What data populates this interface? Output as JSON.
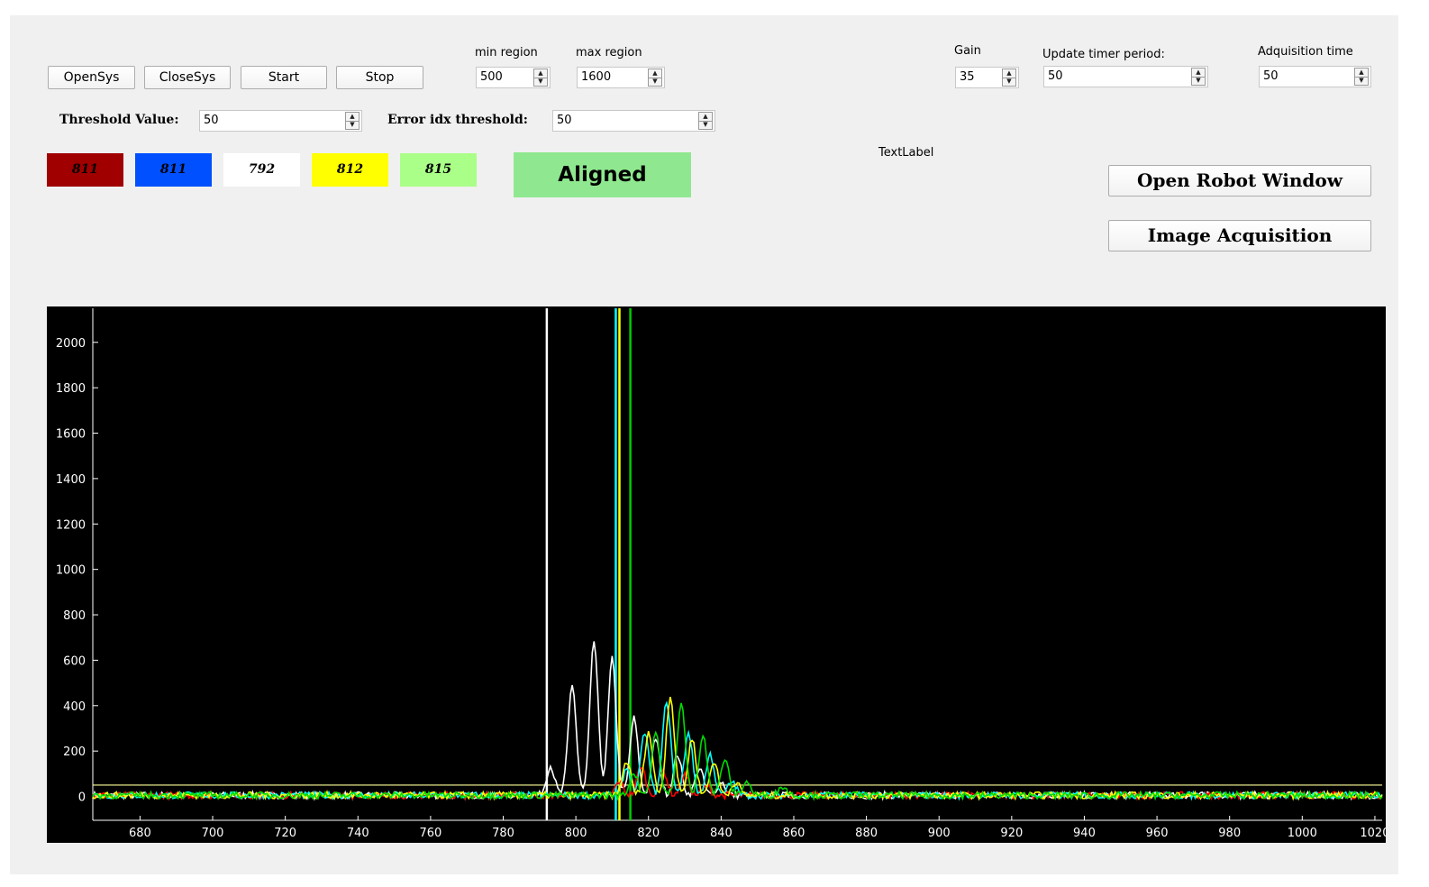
{
  "toolbar": {
    "opensys_label": "OpenSys",
    "closesys_label": "CloseSys",
    "start_label": "Start",
    "stop_label": "Stop"
  },
  "region": {
    "min_label": "min region",
    "min_value": "500",
    "max_label": "max region",
    "max_value": "1600"
  },
  "camera": {
    "gain_label": "Gain",
    "gain_value": "35",
    "update_label": "Update timer period:",
    "update_value": "50",
    "acq_label": "Adquisition time",
    "acq_value": "50"
  },
  "thresholds": {
    "threshold_label": "Threshold Value:",
    "threshold_value": "50",
    "error_label": "Error idx threshold:",
    "error_value": "50"
  },
  "swatches": [
    {
      "value": "811",
      "bg": "#a00000",
      "fg": "#000000"
    },
    {
      "value": "811",
      "bg": "#0050ff",
      "fg": "#000000"
    },
    {
      "value": "792",
      "bg": "#ffffff",
      "fg": "#000000"
    },
    {
      "value": "812",
      "bg": "#ffff00",
      "fg": "#000000"
    },
    {
      "value": "815",
      "bg": "#aaff88",
      "fg": "#000000"
    }
  ],
  "status": {
    "label": "Aligned",
    "color": "#8fe88f"
  },
  "text_label": "TextLabel",
  "actions": {
    "robot_window_label": "Open Robot Window",
    "image_acq_label": "Image Acquisition"
  },
  "chart_data": {
    "type": "line",
    "xlim": [
      667,
      1022
    ],
    "ylim": [
      -105,
      2150
    ],
    "x_ticks": [
      680,
      700,
      720,
      740,
      760,
      780,
      800,
      820,
      840,
      860,
      880,
      900,
      920,
      940,
      960,
      980,
      1000,
      1020
    ],
    "y_ticks": [
      0,
      200,
      400,
      600,
      800,
      1000,
      1200,
      1400,
      1600,
      1800,
      2000
    ],
    "threshold_line": 50,
    "background": "#000000",
    "markers": [
      {
        "x": 792,
        "color": "#ffffff"
      },
      {
        "x": 811,
        "color": "#00ffff"
      },
      {
        "x": 812,
        "color": "#ffff00"
      },
      {
        "x": 815,
        "color": "#00cc00"
      }
    ],
    "series": [
      {
        "color": "#ffffff",
        "peaks": [
          [
            793,
            130
          ],
          [
            799,
            490
          ],
          [
            805,
            680
          ],
          [
            810,
            600
          ],
          [
            816,
            340
          ],
          [
            822,
            250
          ],
          [
            828,
            180
          ],
          [
            834,
            120
          ],
          [
            840,
            60
          ]
        ]
      },
      {
        "color": "#ff0000",
        "peaks": [
          [
            812,
            60
          ],
          [
            818,
            130
          ],
          [
            824,
            110
          ],
          [
            830,
            90
          ],
          [
            836,
            40
          ]
        ]
      },
      {
        "color": "#00ffff",
        "peaks": [
          [
            814,
            120
          ],
          [
            819,
            280
          ],
          [
            825,
            420
          ],
          [
            831,
            280
          ],
          [
            837,
            180
          ],
          [
            843,
            60
          ]
        ]
      },
      {
        "color": "#ffff00",
        "peaks": [
          [
            814,
            150
          ],
          [
            820,
            280
          ],
          [
            826,
            440
          ],
          [
            832,
            250
          ],
          [
            838,
            150
          ],
          [
            844,
            60
          ]
        ]
      },
      {
        "color": "#00dd00",
        "peaks": [
          [
            816,
            100
          ],
          [
            822,
            280
          ],
          [
            829,
            410
          ],
          [
            835,
            270
          ],
          [
            841,
            160
          ],
          [
            847,
            60
          ],
          [
            857,
            40
          ]
        ]
      }
    ]
  }
}
